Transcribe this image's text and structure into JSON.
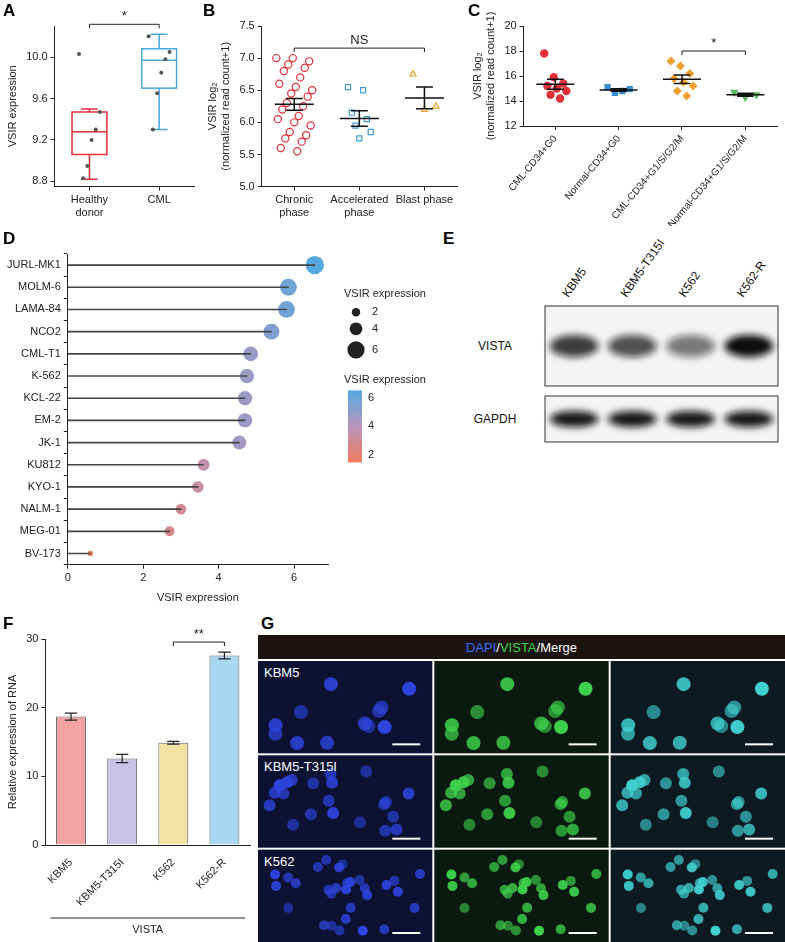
{
  "chart_data": [
    {
      "title": "A",
      "type": "box",
      "categories": [
        "Healthy donor",
        "CML"
      ],
      "ylabel": "VSIR expression",
      "ylim": [
        8.75,
        10.3
      ],
      "yticks": [
        8.8,
        9.2,
        9.6,
        {
          "value": 10,
          "label": "10.0"
        }
      ],
      "grid": false,
      "boxes": [
        {
          "color": "#e0303a",
          "min": 8.82,
          "q1": 9.06,
          "median": 9.28,
          "q3": 9.47,
          "max": 9.5,
          "points": [
            10.03,
            9.47,
            9.3,
            9.2,
            8.95,
            8.83
          ]
        },
        {
          "color": "#4aa8d8",
          "min": 9.3,
          "q1": 9.7,
          "median": 9.97,
          "q3": 10.08,
          "max": 10.22,
          "points": [
            10.2,
            10.05,
            9.98,
            9.85,
            9.65,
            9.3
          ]
        }
      ],
      "annotations": [
        {
          "text": "*",
          "from": 0,
          "to": 1
        }
      ]
    },
    {
      "title": "B",
      "type": "strip",
      "categories": [
        "Chronic phase",
        "Accelerated phase",
        "Blast phase"
      ],
      "ylabel": [
        "VSIR log₂",
        "(normalized read count+1)"
      ],
      "ylim": [
        5,
        7.5
      ],
      "yticks": [
        {
          "value": 5,
          "label": "5.0"
        },
        5.5,
        {
          "value": 6,
          "label": "6.0"
        },
        6.5,
        {
          "value": 7,
          "label": "7.0"
        },
        7.5
      ],
      "grid": false,
      "groups": [
        {
          "color": "#e0303a",
          "marker": "open-circle",
          "values": [
            7.0,
            7.0,
            6.95,
            6.9,
            6.85,
            6.8,
            6.7,
            6.6,
            6.55,
            6.5,
            6.45,
            6.4,
            6.3,
            6.25,
            6.2,
            6.1,
            6.05,
            6.0,
            5.95,
            5.85,
            5.8,
            5.75,
            5.7,
            5.6,
            5.55
          ],
          "mean": 6.28,
          "se": 0.09
        },
        {
          "color": "#3a9fd8",
          "marker": "open-square",
          "values": [
            6.55,
            6.5,
            6.15,
            6.05,
            5.95,
            5.85,
            5.75
          ],
          "mean": 6.06,
          "se": 0.12
        },
        {
          "color": "#f0a030",
          "marker": "open-triangle",
          "values": [
            6.75,
            6.25,
            6.2
          ],
          "mean": 6.38,
          "se": 0.17
        }
      ],
      "annotations": [
        {
          "text": "NS",
          "from": 0,
          "to": 2
        }
      ]
    },
    {
      "title": "C",
      "type": "strip",
      "categories": [
        "CML-CD34+G0",
        "Normal-CD34+G0",
        "CML-CD34+G1/S/G2/M",
        "Normal-CD34+G1/S/G2/M"
      ],
      "ylabel": [
        "VSIR log₂",
        "(normalized read count+1)"
      ],
      "ylim": [
        12,
        20
      ],
      "yticks": [
        12,
        14,
        16,
        18,
        20
      ],
      "grid": false,
      "groups": [
        {
          "color": "#e0303a",
          "marker": "circle",
          "values": [
            17.8,
            15.9,
            15.4,
            15.2,
            15.0,
            14.8,
            14.5,
            14.2
          ],
          "mean": 15.35,
          "se": 0.4
        },
        {
          "color": "#3a8fd0",
          "marker": "square",
          "values": [
            15.1,
            14.95,
            14.8,
            14.65
          ],
          "mean": 14.88,
          "se": 0.1
        },
        {
          "color": "#f0a030",
          "marker": "diamond",
          "values": [
            17.2,
            16.8,
            16.2,
            15.8,
            15.5,
            15.2,
            14.8,
            14.4
          ],
          "mean": 15.74,
          "se": 0.34
        },
        {
          "color": "#5cb85c",
          "marker": "triangle-down",
          "values": [
            14.7,
            14.5,
            14.3
          ],
          "mean": 14.5,
          "se": 0.12
        }
      ],
      "annotations": [
        {
          "text": "*",
          "from": 2,
          "to": 3
        }
      ]
    },
    {
      "title": "D",
      "type": "lollipop",
      "orientation": "horizontal",
      "categories": [
        "JURL-MK1",
        "MOLM-6",
        "LAMA-84",
        "NCO2",
        "CML-T1",
        "K-562",
        "KCL-22",
        "EM-2",
        "JK-1",
        "KU812",
        "KYO-1",
        "NALM-1",
        "MEG-01",
        "BV-173"
      ],
      "values": [
        6.55,
        5.85,
        5.8,
        5.4,
        4.85,
        4.75,
        4.7,
        4.7,
        4.55,
        3.6,
        3.45,
        3.0,
        2.7,
        0.6
      ],
      "xlabel": "VSIR expression",
      "xlim": [
        0,
        6.9
      ],
      "xticks": [
        0,
        2,
        4,
        6
      ],
      "grid": false,
      "size_legend": {
        "title": "VSIR expression",
        "values": [
          2,
          4,
          6
        ]
      },
      "colorbar": {
        "title": "VSIR expression",
        "range": [
          1.5,
          6.5
        ],
        "ticks": [
          2,
          4,
          6
        ]
      }
    },
    {
      "title": "F",
      "type": "bar",
      "categories": [
        "KBM5",
        "KBM5-T315I",
        "K562",
        "K562-R"
      ],
      "values": [
        18.7,
        12.6,
        14.9,
        27.6
      ],
      "errors": [
        0.5,
        0.6,
        0.2,
        0.5
      ],
      "colors": [
        "#f2a3a3",
        "#c9c3e8",
        "#f2e3a3",
        "#a8d8f2"
      ],
      "ylabel": "Relative expression of RNA",
      "xlabel": "VISTA",
      "ylim": [
        0,
        30
      ],
      "yticks": [
        0,
        10,
        20,
        30
      ],
      "grid": false,
      "annotations": [
        {
          "text": "**",
          "from": 2,
          "to": 3
        }
      ]
    }
  ],
  "blot": {
    "title": "E",
    "lanes": [
      "KBM5",
      "KBM5-T315I",
      "K562",
      "K562-R"
    ],
    "rows": [
      {
        "name": "VISTA",
        "intensity": [
          0.8,
          0.72,
          0.55,
          1.0
        ]
      },
      {
        "name": "GAPDH",
        "intensity": [
          0.95,
          0.95,
          0.95,
          0.95
        ]
      }
    ]
  },
  "images": {
    "title": "G",
    "header": [
      {
        "text": "DAPI",
        "color": "#3b6cff"
      },
      {
        "text": "/",
        "color": "#ffffff"
      },
      {
        "text": "VISTA",
        "color": "#3fd24d"
      },
      {
        "text": "/",
        "color": "#ffffff"
      },
      {
        "text": "Merge",
        "color": "#ffffff"
      }
    ],
    "rows": [
      "KBM5",
      "KBM5-T315I",
      "K562"
    ]
  }
}
